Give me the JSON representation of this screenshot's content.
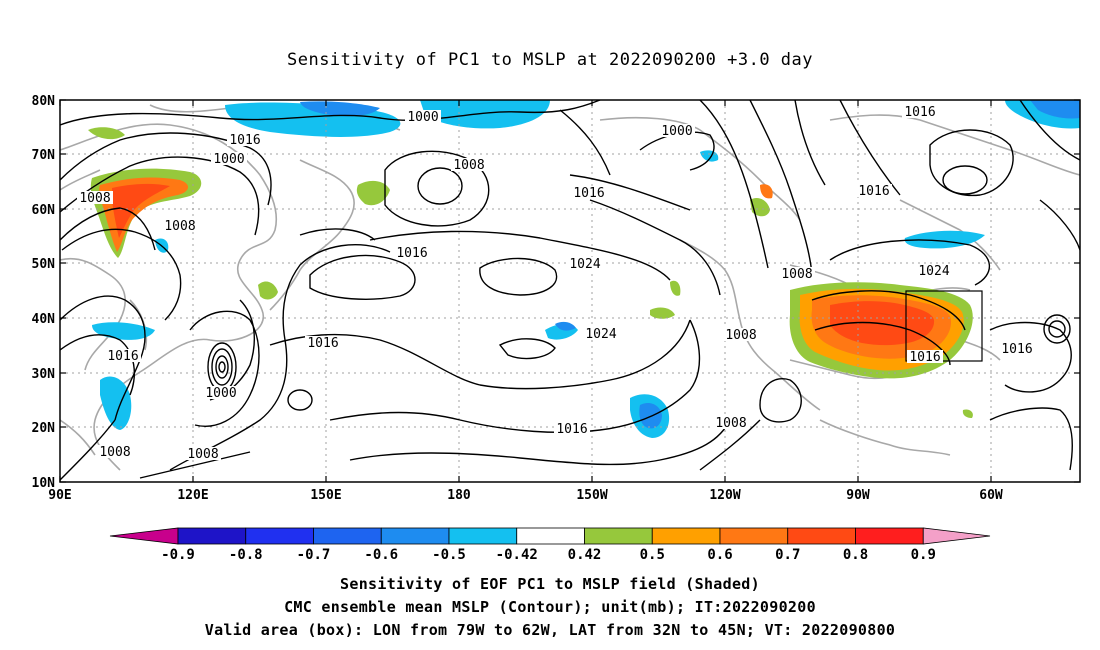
{
  "title": "Sensitivity of PC1 to MSLP at 2022090200 +3.0 day",
  "map": {
    "lat_labels": [
      "80N",
      "70N",
      "60N",
      "50N",
      "40N",
      "30N",
      "20N",
      "10N"
    ],
    "lon_labels": [
      "90E",
      "120E",
      "150E",
      "180",
      "150W",
      "120W",
      "90W",
      "60W"
    ],
    "contour_labels": [
      "1000",
      "1008",
      "1016",
      "1000",
      "1008",
      "1016",
      "1008",
      "1016",
      "1024",
      "1000",
      "1016",
      "1016",
      "1016",
      "1024",
      "1008",
      "1008",
      "1000",
      "1008",
      "1016",
      "1008",
      "1016",
      "1008",
      "1024",
      "1016",
      "1016"
    ],
    "valid_box": {
      "lon": "79W to 62W",
      "lat": "32N to 45N"
    },
    "colors": {
      "land": "#a8a8a8",
      "grid": "#b0b0b0",
      "contour": "#000000"
    }
  },
  "colorbar": {
    "labels": [
      "-0.9",
      "-0.8",
      "-0.7",
      "-0.6",
      "-0.5",
      "-0.42",
      "0.42",
      "0.5",
      "0.6",
      "0.7",
      "0.8",
      "0.9"
    ],
    "colors": [
      "#c8008c",
      "#1e14c8",
      "#2030f0",
      "#1e64f0",
      "#1e8cf0",
      "#14c0f0",
      "#ffffff",
      "#96c83c",
      "#ffa000",
      "#ff7814",
      "#ff4a14",
      "#ff1e1e",
      "#f4a0c8"
    ]
  },
  "captions": [
    "Sensitivity of EOF PC1 to MSLP field (Shaded)",
    "CMC ensemble mean MSLP (Contour); unit(mb); IT:2022090200",
    "Valid area (box): LON from 79W to 62W, LAT from 32N to 45N; VT: 2022090800"
  ]
}
